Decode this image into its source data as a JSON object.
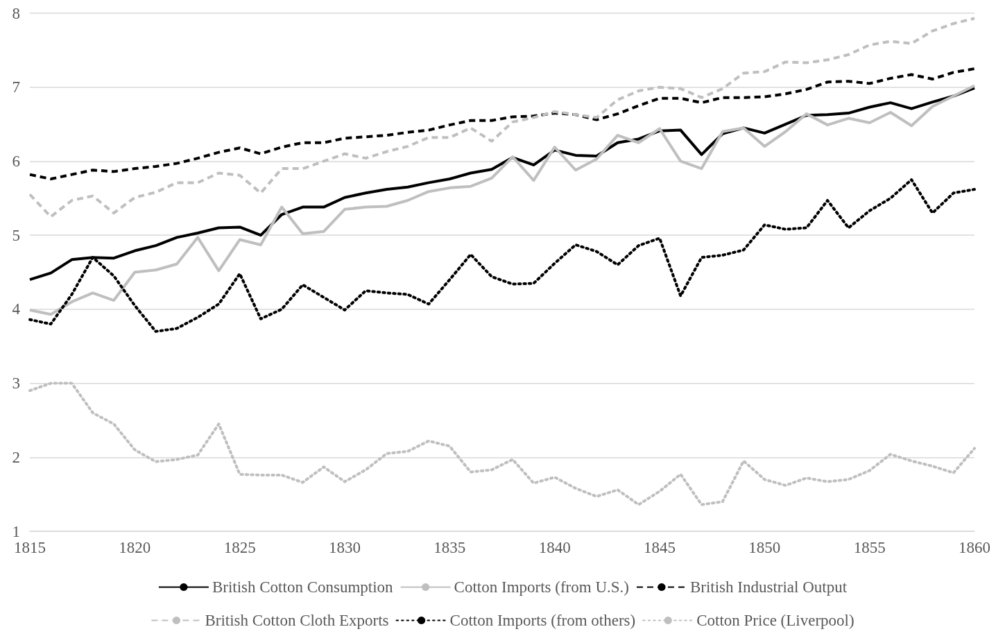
{
  "chart_data": {
    "type": "line",
    "x": [
      1815,
      1816,
      1817,
      1818,
      1819,
      1820,
      1821,
      1822,
      1823,
      1824,
      1825,
      1826,
      1827,
      1828,
      1829,
      1830,
      1831,
      1832,
      1833,
      1834,
      1835,
      1836,
      1837,
      1838,
      1839,
      1840,
      1841,
      1842,
      1843,
      1844,
      1845,
      1846,
      1847,
      1848,
      1849,
      1850,
      1851,
      1852,
      1853,
      1854,
      1855,
      1856,
      1857,
      1858,
      1859,
      1860
    ],
    "xlim": [
      1815,
      1860
    ],
    "xticks": [
      1815,
      1820,
      1825,
      1830,
      1835,
      1840,
      1845,
      1850,
      1855,
      1860
    ],
    "ylim": [
      1,
      8
    ],
    "yticks": [
      1,
      2,
      3,
      4,
      5,
      6,
      7,
      8
    ],
    "grid": "y",
    "legend": "bottom",
    "marker": "none",
    "series": [
      {
        "name": "British Cotton Consumption",
        "color": "#000000",
        "line_style": "solid",
        "values": [
          4.4,
          4.49,
          4.67,
          4.7,
          4.69,
          4.79,
          4.86,
          4.97,
          5.03,
          5.1,
          5.11,
          5.0,
          5.28,
          5.38,
          5.38,
          5.51,
          5.57,
          5.62,
          5.65,
          5.71,
          5.76,
          5.84,
          5.89,
          6.05,
          5.95,
          6.15,
          6.08,
          6.07,
          6.25,
          6.3,
          6.41,
          6.42,
          6.09,
          6.37,
          6.45,
          6.38,
          6.5,
          6.62,
          6.63,
          6.65,
          6.73,
          6.79,
          6.71,
          6.8,
          6.88,
          6.99
        ]
      },
      {
        "name": "Cotton Imports (from U.S.)",
        "color": "#bfbfbf",
        "line_style": "solid",
        "values": [
          3.99,
          3.93,
          4.1,
          4.22,
          4.12,
          4.5,
          4.53,
          4.61,
          4.97,
          4.52,
          4.94,
          4.87,
          5.38,
          5.02,
          5.05,
          5.35,
          5.38,
          5.39,
          5.47,
          5.59,
          5.64,
          5.66,
          5.77,
          6.06,
          5.74,
          6.19,
          5.88,
          6.03,
          6.35,
          6.25,
          6.44,
          6.0,
          5.9,
          6.4,
          6.45,
          6.2,
          6.4,
          6.64,
          6.49,
          6.58,
          6.52,
          6.66,
          6.48,
          6.74,
          6.88,
          7.02
        ]
      },
      {
        "name": "British Industrial Output",
        "color": "#000000",
        "line_style": "dashed",
        "values": [
          5.82,
          5.76,
          5.82,
          5.88,
          5.86,
          5.9,
          5.93,
          5.97,
          6.04,
          6.12,
          6.18,
          6.1,
          6.19,
          6.25,
          6.25,
          6.31,
          6.33,
          6.35,
          6.39,
          6.42,
          6.49,
          6.55,
          6.55,
          6.6,
          6.61,
          6.65,
          6.63,
          6.56,
          6.64,
          6.75,
          6.85,
          6.85,
          6.79,
          6.86,
          6.86,
          6.87,
          6.91,
          6.97,
          7.07,
          7.08,
          7.05,
          7.12,
          7.17,
          7.11,
          7.2,
          7.25
        ]
      },
      {
        "name": "British Cotton Cloth Exports",
        "color": "#bfbfbf",
        "line_style": "dashed",
        "values": [
          5.55,
          5.25,
          5.47,
          5.53,
          5.3,
          5.51,
          5.58,
          5.71,
          5.71,
          5.84,
          5.81,
          5.57,
          5.9,
          5.9,
          6.0,
          6.1,
          6.04,
          6.13,
          6.2,
          6.32,
          6.32,
          6.45,
          6.27,
          6.53,
          6.59,
          6.67,
          6.63,
          6.59,
          6.83,
          6.95,
          7.0,
          6.98,
          6.86,
          6.98,
          7.19,
          7.21,
          7.34,
          7.33,
          7.37,
          7.44,
          7.57,
          7.62,
          7.59,
          7.76,
          7.86,
          7.93
        ]
      },
      {
        "name": "Cotton Imports (from others)",
        "color": "#000000",
        "line_style": "dotted",
        "values": [
          3.86,
          3.8,
          4.2,
          4.7,
          4.45,
          4.05,
          3.7,
          3.74,
          3.89,
          4.07,
          4.48,
          3.87,
          4.0,
          4.33,
          4.16,
          3.99,
          4.25,
          4.22,
          4.2,
          4.07,
          4.4,
          4.74,
          4.44,
          4.34,
          4.35,
          4.62,
          4.87,
          4.78,
          4.6,
          4.86,
          4.96,
          4.18,
          4.7,
          4.73,
          4.8,
          5.14,
          5.08,
          5.1,
          5.47,
          5.1,
          5.33,
          5.5,
          5.75,
          5.3,
          5.57,
          5.62
        ]
      },
      {
        "name": "Cotton Price (Liverpool)",
        "color": "#bfbfbf",
        "line_style": "dotted",
        "values": [
          2.9,
          3.0,
          3.0,
          2.6,
          2.45,
          2.1,
          1.94,
          1.97,
          2.03,
          2.45,
          1.77,
          1.76,
          1.76,
          1.66,
          1.87,
          1.67,
          1.83,
          2.05,
          2.08,
          2.22,
          2.15,
          1.8,
          1.83,
          1.97,
          1.65,
          1.73,
          1.58,
          1.47,
          1.56,
          1.36,
          1.54,
          1.77,
          1.36,
          1.4,
          1.95,
          1.7,
          1.62,
          1.72,
          1.67,
          1.7,
          1.82,
          2.04,
          1.95,
          1.88,
          1.79,
          2.12
        ]
      }
    ]
  }
}
